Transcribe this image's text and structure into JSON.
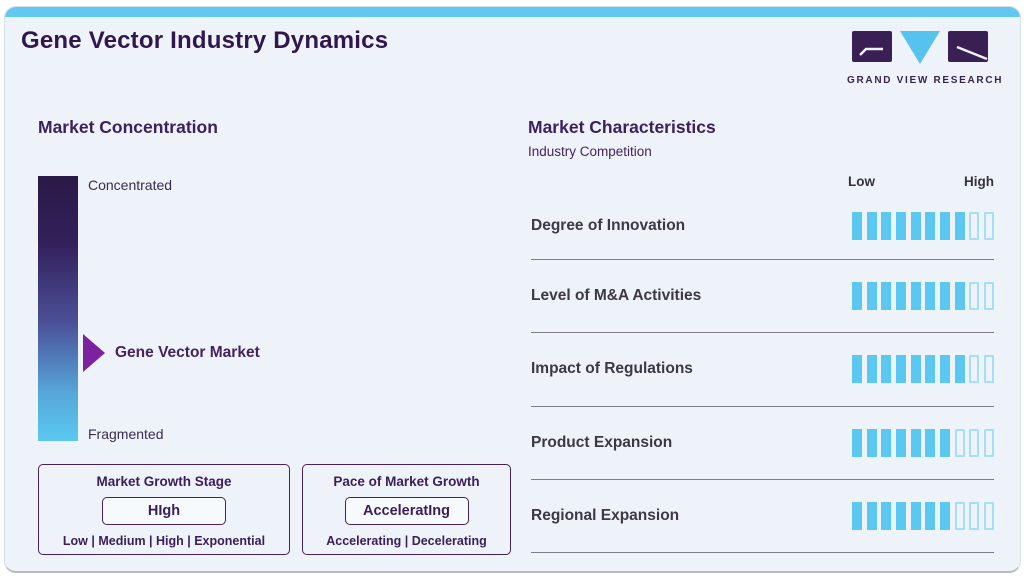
{
  "header": {
    "title": "Gene Vector Industry Dynamics",
    "logo_text": "GRAND VIEW RESEARCH"
  },
  "market_concentration": {
    "heading": "Market Concentration",
    "scale_top_label": "Concentrated",
    "scale_bottom_label": "Fragmented",
    "marker_label": "Gene Vector Market"
  },
  "market_growth_stage": {
    "title": "Market Growth Stage",
    "value": "HIgh",
    "options": "Low | Medium | High | Exponential"
  },
  "pace_of_market_growth": {
    "title": "Pace of Market Growth",
    "value": "AcceleratIng",
    "options": "Accelerating | Decelerating"
  },
  "market_characteristics": {
    "heading": "Market Characteristics",
    "subheading": "Industry Competition",
    "scale_low": "Low",
    "scale_high": "High",
    "rows": [
      {
        "label": "Degree of Innovation",
        "filled": 8,
        "total": 10
      },
      {
        "label": "Level of M&A Activities",
        "filled": 8,
        "total": 10
      },
      {
        "label": "Impact of Regulations",
        "filled": 8,
        "total": 10
      },
      {
        "label": "Product Expansion",
        "filled": 7,
        "total": 10
      },
      {
        "label": "Regional Expansion",
        "filled": 7,
        "total": 10
      }
    ]
  },
  "colors": {
    "brand_purple": "#35194e",
    "accent_blue": "#62c8f0",
    "arrow_purple": "#7c22a0",
    "segment_fill": "#5ac8f0",
    "segment_outline": "#a5dff7",
    "gradient_top": "#2a1a47",
    "gradient_bottom": "#5ac9f1"
  },
  "chart_data": {
    "type": "bar",
    "title": "Market Characteristics - Industry Competition",
    "categories": [
      "Degree of Innovation",
      "Level of M&A Activities",
      "Impact of Regulations",
      "Product Expansion",
      "Regional Expansion"
    ],
    "values": [
      8,
      8,
      8,
      7,
      7
    ],
    "value_range": [
      0,
      10
    ],
    "scale_labels": [
      "Low",
      "High"
    ],
    "legend_position": "none",
    "grid": false,
    "concentration_scale": {
      "top": "Concentrated",
      "bottom": "Fragmented",
      "marker": "Gene Vector Market",
      "marker_position_from_top_pct": 67
    },
    "market_growth_stage": "High",
    "pace_of_market_growth": "Accelerating"
  }
}
